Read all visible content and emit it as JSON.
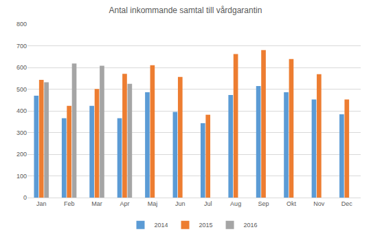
{
  "chart_data": {
    "type": "bar",
    "title": "Antal inkommande samtal till vårdgarantin",
    "categories": [
      "Jan",
      "Feb",
      "Mar",
      "Apr",
      "Maj",
      "Jun",
      "Jul",
      "Aug",
      "Sep",
      "Okt",
      "Nov",
      "Dec"
    ],
    "series": [
      {
        "name": "2014",
        "color": "#5b9bd5",
        "values": [
          470,
          366,
          423,
          366,
          486,
          395,
          343,
          473,
          514,
          486,
          452,
          384
        ]
      },
      {
        "name": "2015",
        "color": "#ed7d31",
        "values": [
          543,
          423,
          501,
          571,
          610,
          556,
          382,
          662,
          680,
          639,
          569,
          452
        ]
      },
      {
        "name": "2016",
        "color": "#a5a5a5",
        "values": [
          532,
          618,
          608,
          525,
          null,
          null,
          null,
          null,
          null,
          null,
          null,
          null
        ]
      }
    ],
    "ylim": [
      0,
      800
    ],
    "yticks": [
      0,
      100,
      200,
      300,
      400,
      500,
      600,
      700,
      800
    ],
    "grid": true,
    "legend": "bottom"
  }
}
